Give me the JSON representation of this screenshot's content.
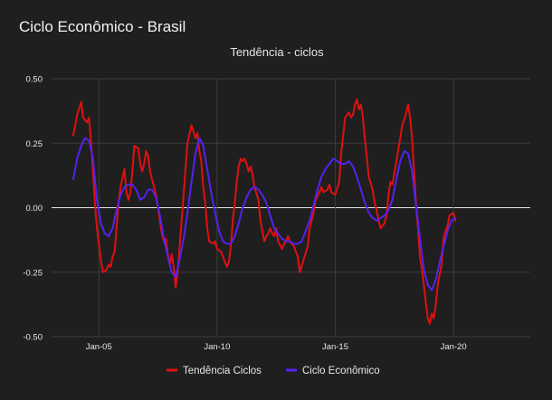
{
  "window": {
    "title": "Ciclo Econômico - Brasil"
  },
  "chart_data": {
    "type": "line",
    "title": "Ciclo Econômico - Brasil",
    "subtitle": "Tendência - ciclos",
    "xlabel": "",
    "ylabel": "",
    "x_axis": {
      "type": "date",
      "range": [
        "2003-01",
        "2023-04"
      ],
      "tick_labels": [
        "Jan-05",
        "Jan-10",
        "Jan-15",
        "Jan-20"
      ],
      "tick_dates": [
        "2005-01",
        "2010-01",
        "2015-01",
        "2020-01"
      ]
    },
    "y_axis": {
      "range": [
        -0.5,
        0.5
      ],
      "tick_values": [
        0.5,
        0.25,
        0.0,
        -0.25,
        -0.5
      ],
      "tick_labels": [
        "0.50",
        "0.25",
        "0.00",
        "-0.25",
        "-0.50"
      ]
    },
    "grid": true,
    "legend": "bottom",
    "series": [
      {
        "name": "Tendência Ciclos",
        "color": "#e01010",
        "points": [
          [
            "2003-12",
            0.28
          ],
          [
            "2004-02",
            0.36
          ],
          [
            "2004-04",
            0.41
          ],
          [
            "2004-05",
            0.35
          ],
          [
            "2004-07",
            0.33
          ],
          [
            "2004-08",
            0.35
          ],
          [
            "2004-09",
            0.26
          ],
          [
            "2004-10",
            0.14
          ],
          [
            "2004-11",
            0.02
          ],
          [
            "2004-12",
            -0.08
          ],
          [
            "2005-02",
            -0.2
          ],
          [
            "2005-03",
            -0.25
          ],
          [
            "2005-05",
            -0.24
          ],
          [
            "2005-06",
            -0.22
          ],
          [
            "2005-07",
            -0.23
          ],
          [
            "2005-08",
            -0.19
          ],
          [
            "2005-09",
            -0.17
          ],
          [
            "2005-10",
            -0.08
          ],
          [
            "2005-11",
            0.02
          ],
          [
            "2005-12",
            0.08
          ],
          [
            "2006-02",
            0.15
          ],
          [
            "2006-03",
            0.06
          ],
          [
            "2006-04",
            0.03
          ],
          [
            "2006-05",
            0.06
          ],
          [
            "2006-06",
            0.14
          ],
          [
            "2006-07",
            0.24
          ],
          [
            "2006-09",
            0.23
          ],
          [
            "2006-10",
            0.17
          ],
          [
            "2006-11",
            0.14
          ],
          [
            "2006-12",
            0.17
          ],
          [
            "2007-01",
            0.22
          ],
          [
            "2007-02",
            0.2
          ],
          [
            "2007-03",
            0.14
          ],
          [
            "2007-05",
            0.08
          ],
          [
            "2007-06",
            0.05
          ],
          [
            "2007-07",
            0.0
          ],
          [
            "2007-08",
            -0.05
          ],
          [
            "2007-09",
            -0.1
          ],
          [
            "2007-10",
            -0.13
          ],
          [
            "2007-11",
            -0.12
          ],
          [
            "2007-12",
            -0.18
          ],
          [
            "2008-01",
            -0.22
          ],
          [
            "2008-02",
            -0.18
          ],
          [
            "2008-03",
            -0.23
          ],
          [
            "2008-04",
            -0.31
          ],
          [
            "2008-05",
            -0.25
          ],
          [
            "2008-06",
            -0.15
          ],
          [
            "2008-07",
            -0.05
          ],
          [
            "2008-08",
            0.05
          ],
          [
            "2008-09",
            0.15
          ],
          [
            "2008-10",
            0.25
          ],
          [
            "2008-12",
            0.32
          ],
          [
            "2009-02",
            0.27
          ],
          [
            "2009-03",
            0.29
          ],
          [
            "2009-04",
            0.22
          ],
          [
            "2009-05",
            0.18
          ],
          [
            "2009-06",
            0.08
          ],
          [
            "2009-07",
            0.02
          ],
          [
            "2009-08",
            -0.08
          ],
          [
            "2009-09",
            -0.13
          ],
          [
            "2009-11",
            -0.14
          ],
          [
            "2009-12",
            -0.13
          ],
          [
            "2010-01",
            -0.16
          ],
          [
            "2010-03",
            -0.17
          ],
          [
            "2010-04",
            -0.19
          ],
          [
            "2010-06",
            -0.23
          ],
          [
            "2010-07",
            -0.21
          ],
          [
            "2010-08",
            -0.15
          ],
          [
            "2010-09",
            -0.05
          ],
          [
            "2010-10",
            0.02
          ],
          [
            "2010-11",
            0.1
          ],
          [
            "2010-12",
            0.16
          ],
          [
            "2011-01",
            0.19
          ],
          [
            "2011-02",
            0.18
          ],
          [
            "2011-03",
            0.19
          ],
          [
            "2011-04",
            0.17
          ],
          [
            "2011-05",
            0.14
          ],
          [
            "2011-06",
            0.16
          ],
          [
            "2011-07",
            0.13
          ],
          [
            "2011-08",
            0.08
          ],
          [
            "2011-10",
            0.03
          ],
          [
            "2011-11",
            -0.05
          ],
          [
            "2011-12",
            -0.09
          ],
          [
            "2012-01",
            -0.13
          ],
          [
            "2012-02",
            -0.11
          ],
          [
            "2012-03",
            -0.1
          ],
          [
            "2012-04",
            -0.08
          ],
          [
            "2012-05",
            -0.1
          ],
          [
            "2012-06",
            -0.11
          ],
          [
            "2012-07",
            -0.08
          ],
          [
            "2012-08",
            -0.13
          ],
          [
            "2012-10",
            -0.16
          ],
          [
            "2012-11",
            -0.14
          ],
          [
            "2012-12",
            -0.13
          ],
          [
            "2013-01",
            -0.11
          ],
          [
            "2013-02",
            -0.13
          ],
          [
            "2013-04",
            -0.15
          ],
          [
            "2013-06",
            -0.19
          ],
          [
            "2013-07",
            -0.25
          ],
          [
            "2013-09",
            -0.2
          ],
          [
            "2013-11",
            -0.15
          ],
          [
            "2013-12",
            -0.08
          ],
          [
            "2014-02",
            -0.02
          ],
          [
            "2014-03",
            0.03
          ],
          [
            "2014-05",
            0.06
          ],
          [
            "2014-06",
            0.08
          ],
          [
            "2014-07",
            0.06
          ],
          [
            "2014-09",
            0.07
          ],
          [
            "2014-10",
            0.09
          ],
          [
            "2014-11",
            0.06
          ],
          [
            "2015-01",
            0.05
          ],
          [
            "2015-03",
            0.1
          ],
          [
            "2015-04",
            0.21
          ],
          [
            "2015-05",
            0.28
          ],
          [
            "2015-06",
            0.35
          ],
          [
            "2015-08",
            0.37
          ],
          [
            "2015-09",
            0.35
          ],
          [
            "2015-10",
            0.36
          ],
          [
            "2015-11",
            0.4
          ],
          [
            "2015-12",
            0.42
          ],
          [
            "2016-01",
            0.38
          ],
          [
            "2016-02",
            0.4
          ],
          [
            "2016-03",
            0.35
          ],
          [
            "2016-04",
            0.27
          ],
          [
            "2016-05",
            0.2
          ],
          [
            "2016-06",
            0.12
          ],
          [
            "2016-08",
            0.07
          ],
          [
            "2016-09",
            0.02
          ],
          [
            "2016-10",
            -0.01
          ],
          [
            "2016-11",
            -0.05
          ],
          [
            "2016-12",
            -0.08
          ],
          [
            "2017-02",
            -0.06
          ],
          [
            "2017-03",
            -0.03
          ],
          [
            "2017-04",
            0.05
          ],
          [
            "2017-05",
            0.1
          ],
          [
            "2017-06",
            0.09
          ],
          [
            "2017-08",
            0.18
          ],
          [
            "2017-10",
            0.27
          ],
          [
            "2017-11",
            0.32
          ],
          [
            "2017-12",
            0.34
          ],
          [
            "2018-01",
            0.37
          ],
          [
            "2018-02",
            0.4
          ],
          [
            "2018-03",
            0.35
          ],
          [
            "2018-04",
            0.27
          ],
          [
            "2018-05",
            0.14
          ],
          [
            "2018-06",
            0.02
          ],
          [
            "2018-07",
            -0.08
          ],
          [
            "2018-08",
            -0.19
          ],
          [
            "2018-09",
            -0.24
          ],
          [
            "2018-10",
            -0.3
          ],
          [
            "2018-11",
            -0.37
          ],
          [
            "2018-12",
            -0.43
          ],
          [
            "2019-01",
            -0.45
          ],
          [
            "2019-02",
            -0.41
          ],
          [
            "2019-03",
            -0.43
          ],
          [
            "2019-04",
            -0.38
          ],
          [
            "2019-05",
            -0.3
          ],
          [
            "2019-07",
            -0.22
          ],
          [
            "2019-08",
            -0.12
          ],
          [
            "2019-09",
            -0.09
          ],
          [
            "2019-10",
            -0.07
          ],
          [
            "2019-11",
            -0.03
          ],
          [
            "2020-01",
            -0.02
          ],
          [
            "2020-02",
            -0.05
          ]
        ]
      },
      {
        "name": "Ciclo Econômico",
        "color": "#5522ee",
        "points": [
          [
            "2003-12",
            0.11
          ],
          [
            "2004-02",
            0.19
          ],
          [
            "2004-04",
            0.24
          ],
          [
            "2004-06",
            0.27
          ],
          [
            "2004-08",
            0.26
          ],
          [
            "2004-10",
            0.19
          ],
          [
            "2004-12",
            0.03
          ],
          [
            "2005-02",
            -0.06
          ],
          [
            "2005-04",
            -0.1
          ],
          [
            "2005-06",
            -0.11
          ],
          [
            "2005-08",
            -0.08
          ],
          [
            "2005-10",
            -0.01
          ],
          [
            "2005-12",
            0.05
          ],
          [
            "2006-02",
            0.08
          ],
          [
            "2006-04",
            0.09
          ],
          [
            "2006-06",
            0.09
          ],
          [
            "2006-08",
            0.07
          ],
          [
            "2006-10",
            0.03
          ],
          [
            "2006-12",
            0.04
          ],
          [
            "2007-02",
            0.07
          ],
          [
            "2007-04",
            0.07
          ],
          [
            "2007-06",
            0.04
          ],
          [
            "2007-08",
            -0.03
          ],
          [
            "2007-10",
            -0.12
          ],
          [
            "2007-12",
            -0.19
          ],
          [
            "2008-02",
            -0.25
          ],
          [
            "2008-04",
            -0.27
          ],
          [
            "2008-06",
            -0.2
          ],
          [
            "2008-08",
            -0.12
          ],
          [
            "2008-10",
            -0.02
          ],
          [
            "2008-12",
            0.1
          ],
          [
            "2009-02",
            0.21
          ],
          [
            "2009-04",
            0.27
          ],
          [
            "2009-06",
            0.24
          ],
          [
            "2009-08",
            0.15
          ],
          [
            "2009-10",
            0.06
          ],
          [
            "2009-12",
            -0.02
          ],
          [
            "2010-02",
            -0.09
          ],
          [
            "2010-04",
            -0.13
          ],
          [
            "2010-06",
            -0.14
          ],
          [
            "2010-08",
            -0.14
          ],
          [
            "2010-10",
            -0.11
          ],
          [
            "2010-12",
            -0.06
          ],
          [
            "2011-02",
            0.0
          ],
          [
            "2011-04",
            0.04
          ],
          [
            "2011-06",
            0.07
          ],
          [
            "2011-08",
            0.08
          ],
          [
            "2011-10",
            0.07
          ],
          [
            "2011-12",
            0.05
          ],
          [
            "2012-02",
            0.02
          ],
          [
            "2012-04",
            -0.03
          ],
          [
            "2012-06",
            -0.08
          ],
          [
            "2012-08",
            -0.1
          ],
          [
            "2012-10",
            -0.12
          ],
          [
            "2012-12",
            -0.13
          ],
          [
            "2013-02",
            -0.13
          ],
          [
            "2013-04",
            -0.14
          ],
          [
            "2013-06",
            -0.14
          ],
          [
            "2013-08",
            -0.13
          ],
          [
            "2013-10",
            -0.09
          ],
          [
            "2013-12",
            -0.05
          ],
          [
            "2014-02",
            0.01
          ],
          [
            "2014-04",
            0.07
          ],
          [
            "2014-06",
            0.12
          ],
          [
            "2014-08",
            0.15
          ],
          [
            "2014-10",
            0.17
          ],
          [
            "2014-12",
            0.19
          ],
          [
            "2015-02",
            0.18
          ],
          [
            "2015-04",
            0.17
          ],
          [
            "2015-06",
            0.17
          ],
          [
            "2015-08",
            0.18
          ],
          [
            "2015-10",
            0.16
          ],
          [
            "2015-12",
            0.12
          ],
          [
            "2016-02",
            0.07
          ],
          [
            "2016-04",
            0.02
          ],
          [
            "2016-06",
            -0.02
          ],
          [
            "2016-08",
            -0.04
          ],
          [
            "2016-10",
            -0.05
          ],
          [
            "2016-12",
            -0.04
          ],
          [
            "2017-02",
            -0.03
          ],
          [
            "2017-04",
            -0.01
          ],
          [
            "2017-06",
            0.03
          ],
          [
            "2017-08",
            0.11
          ],
          [
            "2017-10",
            0.18
          ],
          [
            "2017-12",
            0.22
          ],
          [
            "2018-02",
            0.21
          ],
          [
            "2018-04",
            0.14
          ],
          [
            "2018-06",
            0.01
          ],
          [
            "2018-08",
            -0.12
          ],
          [
            "2018-10",
            -0.24
          ],
          [
            "2018-12",
            -0.3
          ],
          [
            "2019-02",
            -0.32
          ],
          [
            "2019-04",
            -0.28
          ],
          [
            "2019-06",
            -0.21
          ],
          [
            "2019-08",
            -0.15
          ],
          [
            "2019-10",
            -0.09
          ],
          [
            "2019-12",
            -0.05
          ],
          [
            "2020-02",
            -0.04
          ]
        ]
      }
    ]
  }
}
